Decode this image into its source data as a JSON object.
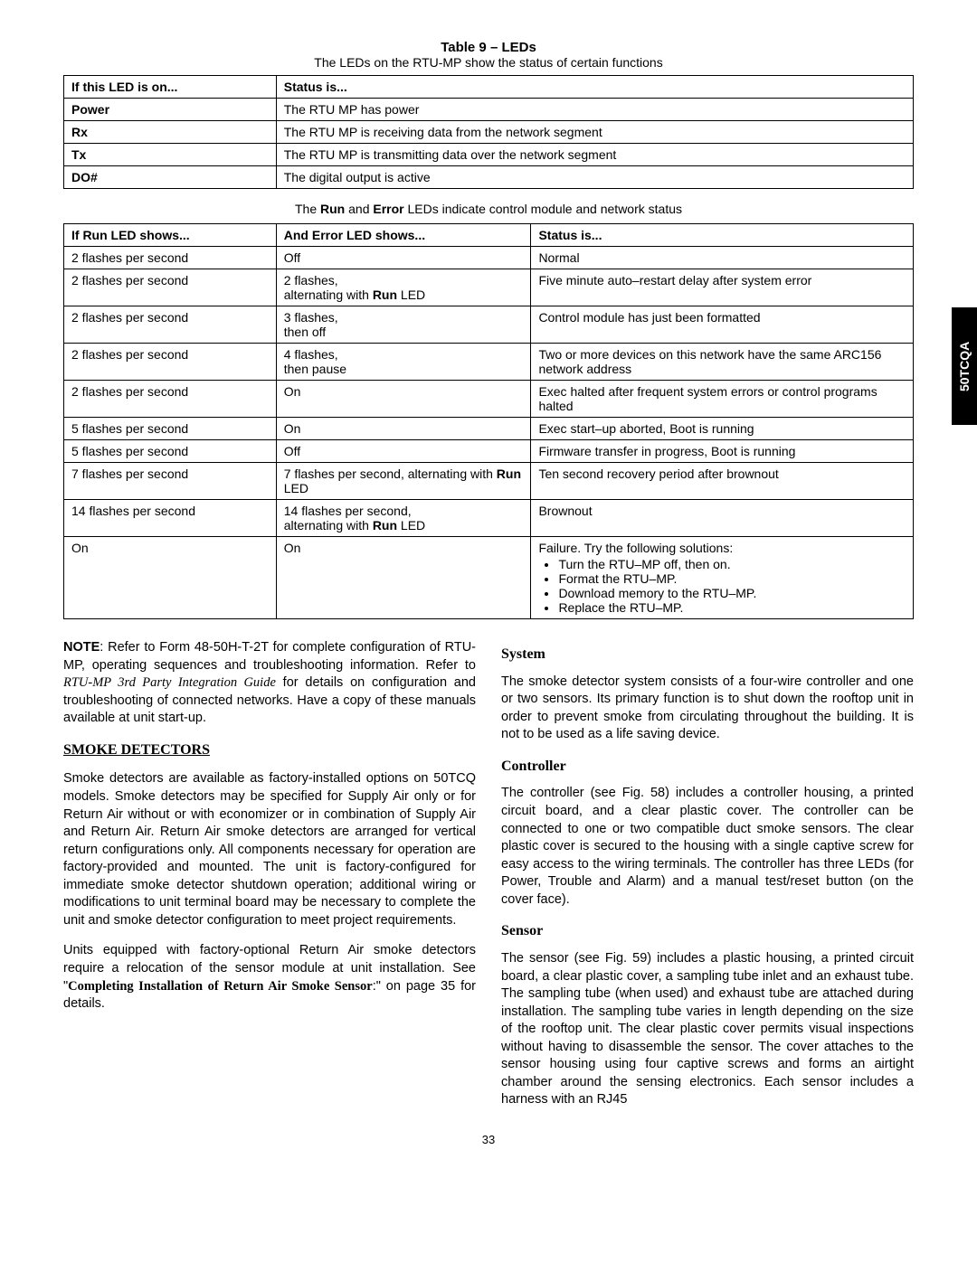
{
  "sideTab": "50TCQA",
  "pageNumber": "33",
  "tableTitle": {
    "label": "Table 9 – LEDs"
  },
  "tableSubtitle": "The LEDs on the RTU-MP show the status of certain functions",
  "table1": {
    "headers": [
      "If this LED is on...",
      "Status is..."
    ],
    "rows": [
      [
        "Power",
        "The RTU MP has power"
      ],
      [
        "Rx",
        "The RTU MP is receiving data from the network segment"
      ],
      [
        "Tx",
        "The RTU MP is transmitting data over the network segment"
      ],
      [
        "DO#",
        "The digital output is active"
      ]
    ]
  },
  "midNote": {
    "pre": "The ",
    "b1": "Run",
    "mid": " and ",
    "b2": "Error",
    "post": " LEDs indicate control module and network status"
  },
  "table2": {
    "headers": [
      "If Run LED shows...",
      "And Error LED shows...",
      "Status is..."
    ],
    "rows": [
      {
        "c1": "2 flashes per second",
        "c2": "Off",
        "c3": "Normal"
      },
      {
        "c1": "2 flashes per second",
        "c2_pre": "2 flashes,\nalternating with ",
        "c2_b": "Run",
        "c2_post": " LED",
        "c3": "Five minute auto–restart delay after system error"
      },
      {
        "c1": "2 flashes per second",
        "c2": "3 flashes,\nthen off",
        "c3": "Control module has just been formatted"
      },
      {
        "c1": "2 flashes per second",
        "c2": "4 flashes,\nthen pause",
        "c3": "Two or more devices on this network have the same ARC156 network address"
      },
      {
        "c1": "2 flashes per second",
        "c2": "On",
        "c3": "Exec halted after frequent system errors or control programs halted"
      },
      {
        "c1": "5 flashes per second",
        "c2": "On",
        "c3": "Exec start–up aborted, Boot is running"
      },
      {
        "c1": "5 flashes per second",
        "c2": "Off",
        "c3": "Firmware transfer in progress, Boot is running"
      },
      {
        "c1": "7 flashes per second",
        "c2_pre": "7 flashes per second, alternating with ",
        "c2_b": "Run",
        "c2_post": " LED",
        "c3": "Ten second recovery period after brownout"
      },
      {
        "c1": "14 flashes per second",
        "c2_pre": "14 flashes per second,\nalternating with ",
        "c2_b": "Run",
        "c2_post": " LED",
        "c3": "Brownout"
      },
      {
        "c1": "On",
        "c2": "On",
        "c3_lead": "Failure. Try the following solutions:",
        "c3_items": [
          "Turn the RTU–MP off, then on.",
          "Format the RTU–MP.",
          "Download memory to the RTU–MP.",
          "Replace the RTU–MP."
        ]
      }
    ]
  },
  "noteBlock": {
    "label": "NOTE",
    "text1": ":    Refer to Form 48-50H-T-2T for complete configuration of RTU-MP, operating sequences and troubleshooting information. Refer to ",
    "italic": "RTU-MP 3rd Party Integration Guide",
    "text2": " for details on configuration and troubleshooting of connected networks. Have a copy of these manuals available at unit start-up."
  },
  "smokeHeading": "SMOKE DETECTORS",
  "smokeP1": "Smoke detectors are available as factory-installed options on 50TCQ models. Smoke detectors may be specified for Supply Air only or for Return Air without or with economizer or in combination of Supply Air and Return Air. Return Air smoke detectors are arranged for vertical return configurations only. All components necessary for operation are factory-provided and mounted. The unit is factory-configured for immediate smoke detector shutdown operation; additional wiring or modifications to unit terminal board may be necessary to complete the unit and smoke detector configuration to meet project requirements.",
  "smokeP2a": "Units equipped with factory-optional Return Air smoke detectors require a relocation of the sensor module at unit installation. See \"",
  "smokeP2b": "Completing Installation of Return Air Smoke Sensor",
  "smokeP2c": ":\" on page 35 for details.",
  "systemHeading": "System",
  "systemP": "The smoke detector system consists of a four-wire controller and one or two sensors. Its primary function is to shut down the rooftop unit in order to prevent smoke from circulating throughout the building. It is not to be used as a life saving device.",
  "controllerHeading": "Controller",
  "controllerP": "The controller (see Fig. 58) includes a controller housing, a printed circuit board, and a clear plastic cover. The controller can be connected to one or two compatible duct smoke sensors. The clear plastic cover is secured to the housing with a single captive screw for easy access to the wiring terminals. The controller has three LEDs (for Power, Trouble and Alarm) and a manual test/reset button (on the cover face).",
  "sensorHeading": "Sensor",
  "sensorP": "The sensor (see Fig. 59) includes a plastic housing, a printed circuit board, a clear plastic cover, a sampling tube inlet and an exhaust tube. The sampling tube (when used) and exhaust tube are attached during installation. The sampling tube varies in length depending on the size of the rooftop unit. The clear plastic cover permits visual inspections without having to disassemble the sensor. The cover attaches to the sensor housing using four captive screws and forms an airtight chamber around the sensing electronics. Each sensor includes a harness with an RJ45"
}
